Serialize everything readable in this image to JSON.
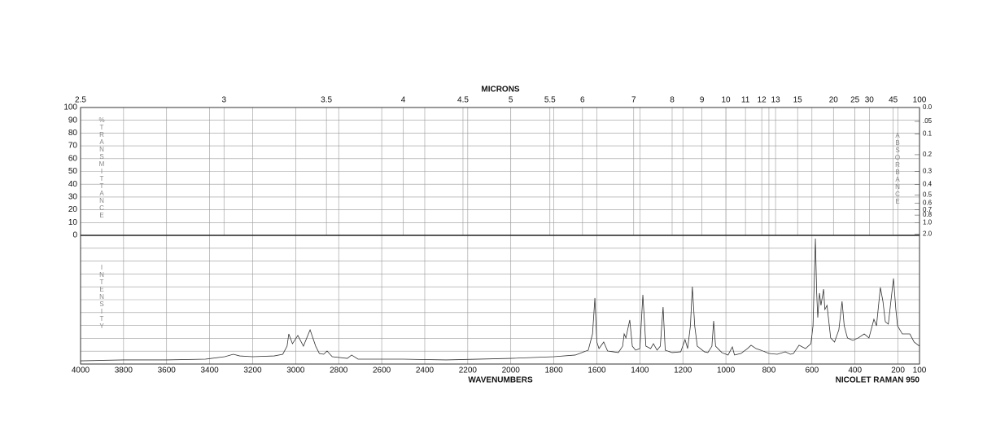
{
  "chart_data": {
    "type": "line",
    "top_axis_label": "MICRONS",
    "x_label": "WAVENUMBERS",
    "annotation": "NICOLET RAMAN 950",
    "transmittance_label": "%TRANSMITTANCE",
    "absorbance_label": "ABSORBANCE",
    "intensity_label": "INTENSITY",
    "xlim": [
      4000,
      100
    ],
    "xticks": [
      4000,
      3800,
      3600,
      3400,
      3200,
      3000,
      2800,
      2600,
      2400,
      2200,
      2000,
      1800,
      1600,
      1400,
      1200,
      1000,
      800,
      600,
      400,
      200,
      100
    ],
    "top_ticks": [
      {
        "value": 4000,
        "label": "2.5"
      },
      {
        "value": 3333.33,
        "label": "3"
      },
      {
        "value": 2857.14,
        "label": "3.5"
      },
      {
        "value": 2500,
        "label": "4"
      },
      {
        "value": 2222.22,
        "label": "4.5"
      },
      {
        "value": 2000,
        "label": "5"
      },
      {
        "value": 1818.18,
        "label": "5.5"
      },
      {
        "value": 1666.67,
        "label": "6"
      },
      {
        "value": 1428.57,
        "label": "7"
      },
      {
        "value": 1250,
        "label": "8"
      },
      {
        "value": 1111.11,
        "label": "9"
      },
      {
        "value": 1000,
        "label": "10"
      },
      {
        "value": 909.09,
        "label": "11"
      },
      {
        "value": 833.33,
        "label": "12"
      },
      {
        "value": 769.23,
        "label": "13"
      },
      {
        "value": 666.67,
        "label": "15"
      },
      {
        "value": 500,
        "label": "20"
      },
      {
        "value": 400,
        "label": "25"
      },
      {
        "value": 333.33,
        "label": "30"
      },
      {
        "value": 222.22,
        "label": "45"
      },
      {
        "value": 100,
        "label": "100"
      }
    ],
    "transmittance_lim": [
      0,
      100
    ],
    "transmittance_ticks": [
      0,
      10,
      20,
      30,
      40,
      50,
      60,
      70,
      80,
      90,
      100
    ],
    "absorbance_ticks": [
      {
        "value": 0,
        "label": "0.0"
      },
      {
        "value": 0.05,
        "label": ".05"
      },
      0.1,
      0.2,
      0.3,
      0.4,
      0.5,
      0.6,
      0.7,
      0.8,
      {
        "value": 1,
        "label": "1.0"
      },
      {
        "value": 2,
        "label": "2.0"
      }
    ],
    "ylim": [
      0,
      100
    ],
    "yticks": [
      0,
      10,
      20,
      30,
      40,
      50,
      60,
      70,
      80,
      90,
      100
    ],
    "grid": true,
    "color": "#333333",
    "x": [
      4000,
      3800,
      3600,
      3420,
      3330,
      3290,
      3260,
      3200,
      3100,
      3060,
      3040,
      3032,
      3015,
      2990,
      2964,
      2933,
      2907,
      2890,
      2870,
      2854,
      2830,
      2760,
      2740,
      2710,
      2500,
      2300,
      2000,
      1800,
      1700,
      1640,
      1620,
      1609,
      1600,
      1590,
      1568,
      1550,
      1500,
      1480,
      1473,
      1465,
      1447,
      1435,
      1420,
      1400,
      1386,
      1372,
      1350,
      1337,
      1320,
      1305,
      1292,
      1282,
      1250,
      1210,
      1190,
      1178,
      1165,
      1156,
      1145,
      1133,
      1100,
      1084,
      1065,
      1057,
      1048,
      1030,
      1019,
      990,
      970,
      960,
      930,
      900,
      883,
      860,
      838,
      800,
      762,
      724,
      700,
      686,
      660,
      630,
      605,
      595,
      584,
      578,
      573,
      565,
      558,
      546,
      540,
      530,
      513,
      495,
      475,
      460,
      450,
      435,
      410,
      385,
      357,
      335,
      312,
      300,
      282,
      270,
      259,
      245,
      221,
      210,
      202,
      180,
      145,
      125,
      100
    ],
    "values": [
      2.5,
      3.2,
      3.2,
      3.8,
      5.7,
      7.6,
      6.3,
      5.7,
      6.3,
      7.6,
      13.9,
      23.4,
      15.8,
      22.2,
      13.9,
      26.6,
      13.9,
      8.2,
      7.6,
      10.1,
      5.7,
      4.4,
      7.0,
      3.8,
      3.8,
      3.2,
      4.4,
      5.7,
      7.0,
      10.8,
      23.4,
      51.3,
      17.1,
      12.0,
      17.1,
      10.1,
      8.9,
      13.9,
      23.4,
      20.3,
      34.2,
      13.9,
      10.8,
      12.0,
      53.8,
      13.9,
      12.0,
      15.8,
      10.8,
      13.9,
      44.3,
      10.8,
      8.9,
      9.5,
      19.0,
      12.0,
      29.7,
      60.1,
      29.7,
      13.9,
      9.5,
      8.9,
      13.9,
      33.5,
      13.9,
      10.8,
      8.9,
      7.0,
      13.3,
      7.0,
      8.2,
      12.0,
      14.6,
      12.0,
      10.8,
      8.2,
      7.6,
      9.5,
      7.6,
      8.2,
      14.6,
      12.0,
      15.8,
      29.7,
      97.5,
      55.1,
      36.1,
      55.1,
      45.6,
      58.2,
      42.4,
      45.6,
      20.3,
      17.1,
      26.6,
      48.7,
      29.7,
      20.3,
      18.4,
      20.3,
      23.4,
      20.3,
      34.8,
      29.7,
      59.5,
      48.7,
      32.9,
      31.0,
      66.5,
      42.4,
      29.7,
      23.4,
      23.4,
      17.1,
      13.9
    ]
  }
}
